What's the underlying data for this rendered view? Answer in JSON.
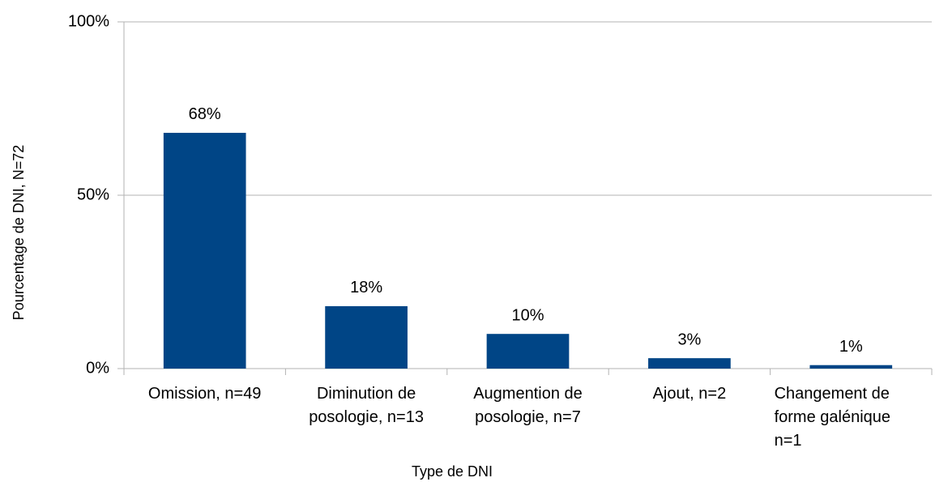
{
  "chart_data": {
    "type": "bar",
    "xlabel": "Type de DNI",
    "ylabel": "Pourcentage de DNI, N=72",
    "categories": [
      "Omission, n=49",
      "Diminution de posologie, n=13",
      "Augmention de posologie, n=7",
      "Ajout, n=2",
      "Changement de forme galénique n=1"
    ],
    "values": [
      68,
      18,
      10,
      3,
      1
    ],
    "value_labels": [
      "68%",
      "18%",
      "10%",
      "3%",
      "1%"
    ],
    "color": "#004586",
    "ylim": [
      0,
      100
    ],
    "yticks": [
      {
        "value": 0,
        "label": "0%"
      },
      {
        "value": 50,
        "label": "50%"
      },
      {
        "value": 100,
        "label": "100%"
      }
    ],
    "grid": true
  }
}
